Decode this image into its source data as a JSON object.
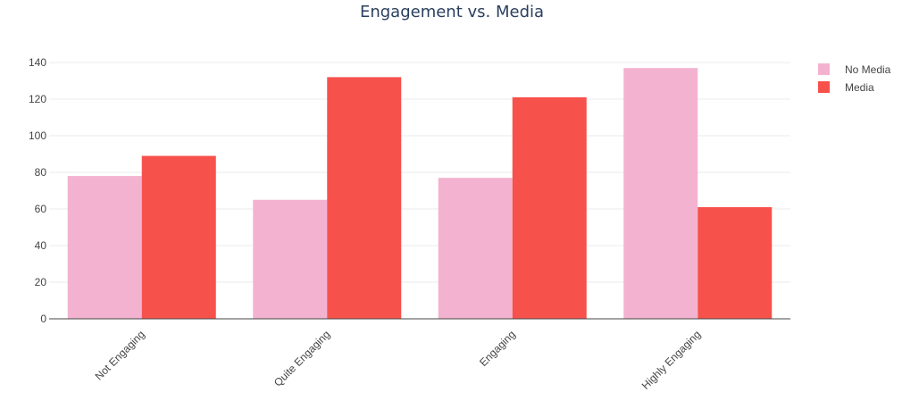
{
  "chart_data": {
    "type": "bar",
    "title": "Engagement vs. Media",
    "categories": [
      "Not Engaging",
      "Quite Engaging",
      "Engaging",
      "Highly Engaging"
    ],
    "series": [
      {
        "name": "No Media",
        "values": [
          78,
          65,
          77,
          137
        ],
        "color": "#f3b3d0"
      },
      {
        "name": "Media",
        "values": [
          89,
          132,
          121,
          61
        ],
        "color": "#f7514c"
      }
    ],
    "xlabel": "",
    "ylabel": "",
    "ylim": [
      0,
      140
    ],
    "yticks": [
      0,
      20,
      40,
      60,
      80,
      100,
      120,
      140
    ],
    "grid": true,
    "legend_position": "top-right"
  }
}
